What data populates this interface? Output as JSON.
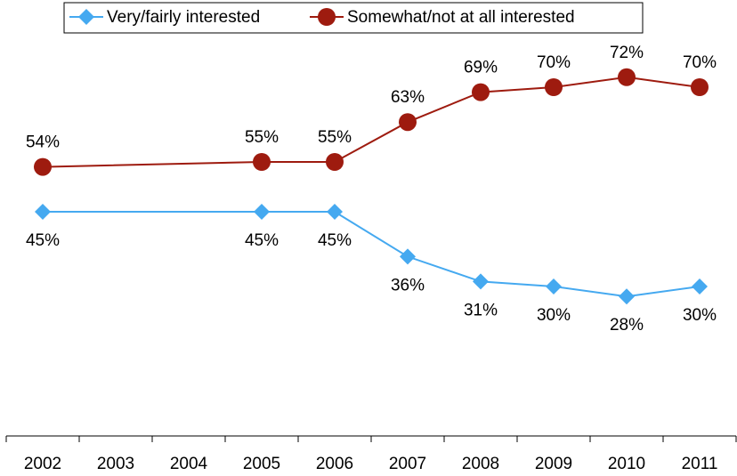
{
  "chart_data": {
    "type": "line",
    "xticks": [
      2002,
      2003,
      2004,
      2005,
      2006,
      2007,
      2008,
      2009,
      2010,
      2011
    ],
    "xlim": [
      2001.5,
      2011.5
    ],
    "legend": "top",
    "series": [
      {
        "name": "Very/fairly interested",
        "color": "#45a9f0",
        "marker": "diamond",
        "x": [
          2002,
          2005,
          2006,
          2007,
          2008,
          2009,
          2010,
          2011
        ],
        "values": [
          45,
          45,
          45,
          36,
          31,
          30,
          28,
          30
        ],
        "value_labels": [
          "45%",
          "45%",
          "45%",
          "36%",
          "31%",
          "30%",
          "28%",
          "30%"
        ]
      },
      {
        "name": "Somewhat/not at all interested",
        "color": "#9e1b0f",
        "marker": "circle",
        "x": [
          2002,
          2005,
          2006,
          2007,
          2008,
          2009,
          2010,
          2011
        ],
        "values": [
          54,
          55,
          55,
          63,
          69,
          70,
          72,
          70
        ],
        "value_labels": [
          "54%",
          "55%",
          "55%",
          "63%",
          "69%",
          "70%",
          "72%",
          "70%"
        ]
      }
    ]
  }
}
